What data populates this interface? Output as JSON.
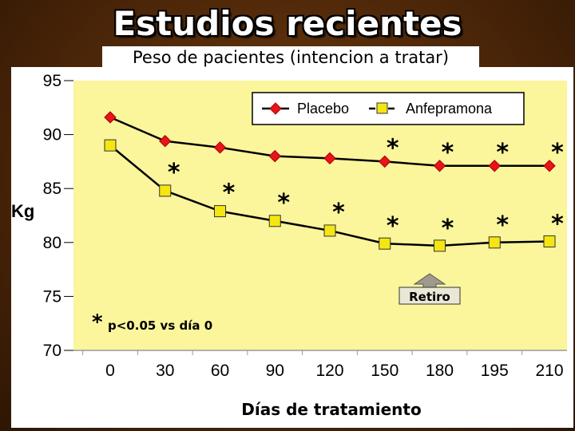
{
  "page": {
    "title": "Estudios recientes",
    "subtitle": "Peso de pacientes (intencion a tratar)"
  },
  "chart_data": {
    "type": "line",
    "xlabel": "Días de tratamiento",
    "ylabel": "Kg",
    "categories": [
      "0",
      "30",
      "60",
      "90",
      "120",
      "150",
      "180",
      "195",
      "210"
    ],
    "ylim": [
      70,
      95
    ],
    "yticks": [
      "70",
      "75",
      "80",
      "85",
      "90",
      "95"
    ],
    "series": [
      {
        "name": "Placebo",
        "color": "#e8141a",
        "marker": "diamond",
        "values": [
          91.6,
          89.4,
          88.8,
          88.0,
          87.8,
          87.5,
          87.1,
          87.1,
          87.1
        ]
      },
      {
        "name": "Anfepramona",
        "color": "#f5e612",
        "marker": "square",
        "values": [
          89.0,
          84.8,
          82.9,
          82.0,
          81.1,
          79.9,
          79.7,
          80.0,
          80.1
        ]
      }
    ],
    "significance": {
      "symbol": "*",
      "note": "p<0.05 vs día 0",
      "placebo_indices": [
        5,
        6,
        7,
        8
      ],
      "anfepramona_indices": [
        1,
        2,
        3,
        4,
        5,
        6,
        7,
        8
      ]
    },
    "annotation": {
      "text": "Retiro",
      "category_index": 6
    },
    "plot_background": "#fbf59c",
    "line_color": "#000000",
    "grid": false,
    "legend": "top-right"
  }
}
